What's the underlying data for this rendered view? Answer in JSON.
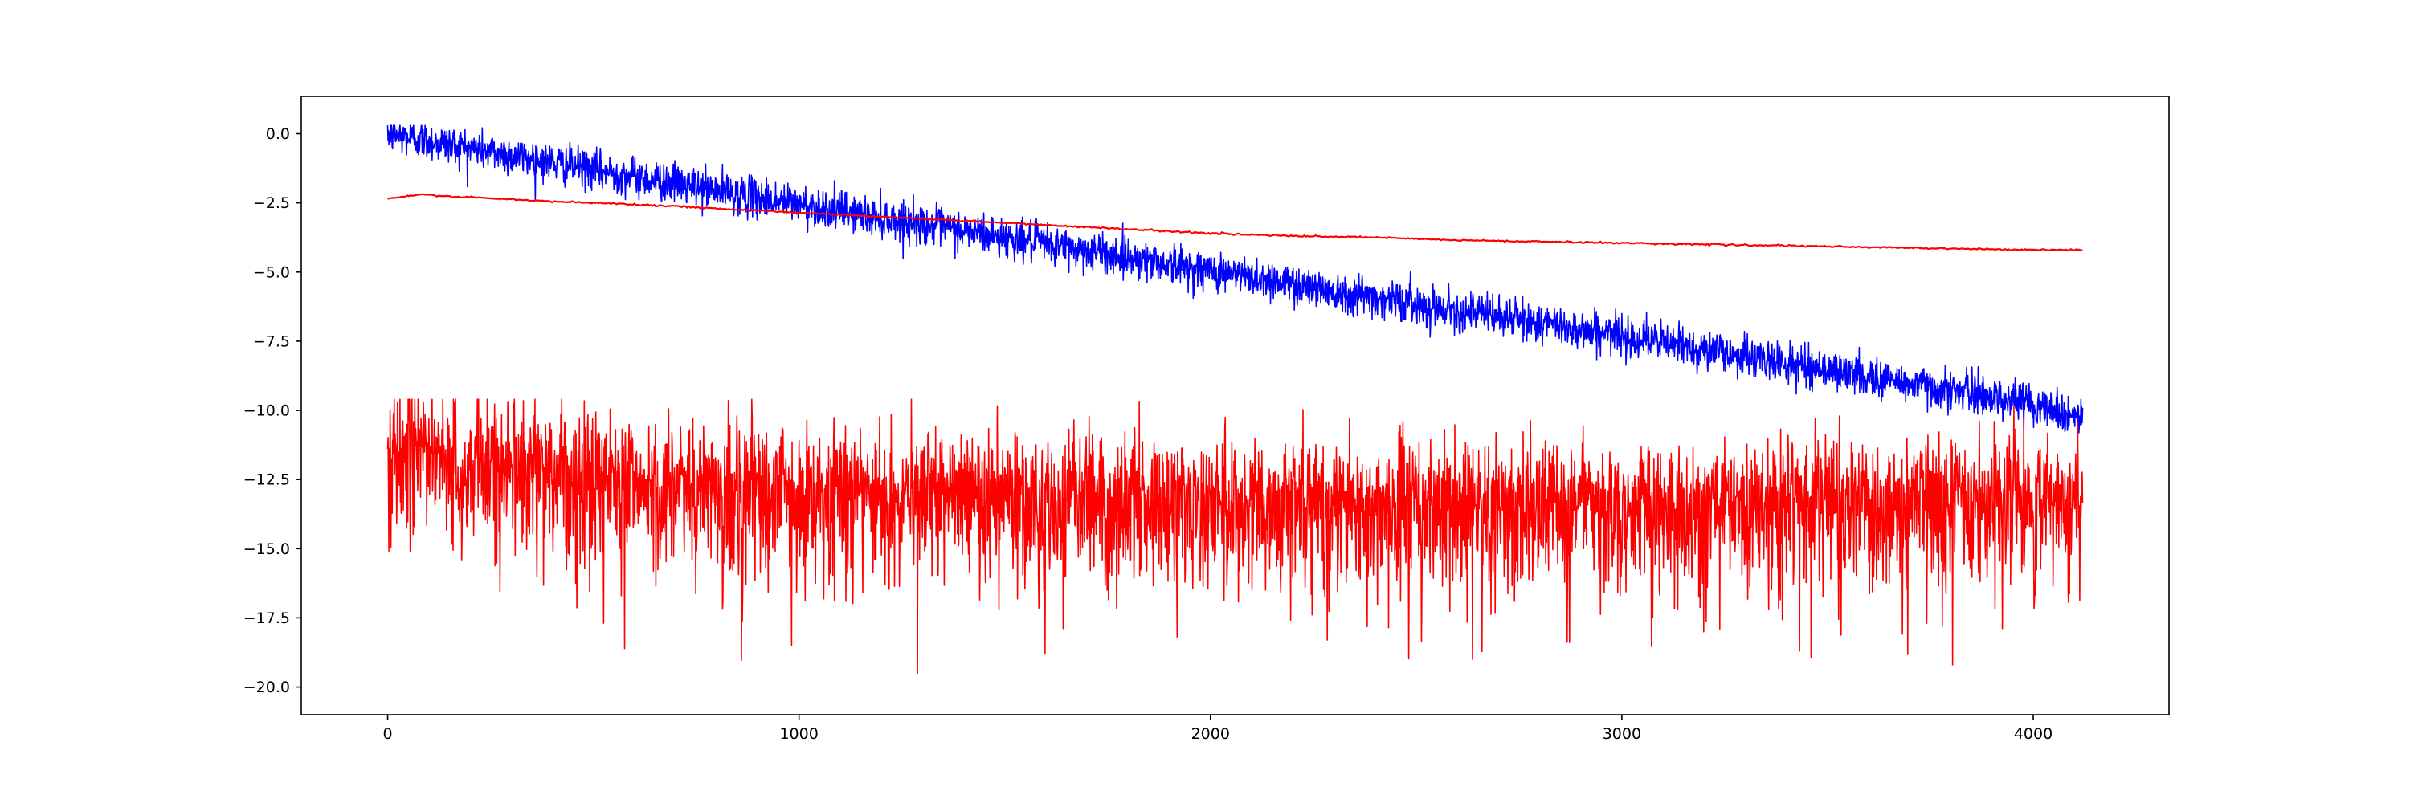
{
  "chart_data": {
    "type": "line",
    "title": "",
    "xlabel": "",
    "ylabel": "",
    "xlim": [
      -210,
      4330
    ],
    "ylim": [
      -21.0,
      1.35
    ],
    "grid": false,
    "legend": "none",
    "x_ticks": [
      {
        "value": 0,
        "label": "0"
      },
      {
        "value": 1000,
        "label": "1000"
      },
      {
        "value": 2000,
        "label": "2000"
      },
      {
        "value": 3000,
        "label": "3000"
      },
      {
        "value": 4000,
        "label": "4000"
      }
    ],
    "y_ticks": [
      {
        "value": 0.0,
        "label": "0.0"
      },
      {
        "value": -2.5,
        "label": "−2.5"
      },
      {
        "value": -5.0,
        "label": "−5.0"
      },
      {
        "value": -7.5,
        "label": "−7.5"
      },
      {
        "value": -10.0,
        "label": "−10.0"
      },
      {
        "value": -12.5,
        "label": "−12.5"
      },
      {
        "value": -15.0,
        "label": "−15.0"
      },
      {
        "value": -17.5,
        "label": "−17.5"
      },
      {
        "value": -20.0,
        "label": "−20.0"
      }
    ],
    "series": [
      {
        "color": "#0000ff",
        "style": "noisy",
        "x": [
          0,
          500,
          1000,
          1500,
          2000,
          2500,
          3000,
          3500,
          4000,
          4120
        ],
        "trend": [
          0.0,
          -1.3,
          -2.55,
          -3.75,
          -4.95,
          -6.15,
          -7.3,
          -8.55,
          -9.75,
          -10.3
        ],
        "noise_amplitude": 0.35,
        "min": -11.0,
        "max": 0.3
      },
      {
        "color": "#ff0000",
        "style": "smooth",
        "x": [
          0,
          80,
          200,
          400,
          600,
          800,
          1000,
          1200,
          1400,
          1600,
          1800,
          2000,
          2200,
          2400,
          2600,
          2800,
          3000,
          3200,
          3400,
          3600,
          3800,
          4000,
          4120
        ],
        "y": [
          -2.35,
          -2.2,
          -2.3,
          -2.45,
          -2.55,
          -2.7,
          -2.85,
          -3.0,
          -3.15,
          -3.3,
          -3.45,
          -3.6,
          -3.7,
          -3.75,
          -3.85,
          -3.9,
          -3.95,
          -4.0,
          -4.05,
          -4.1,
          -4.15,
          -4.2,
          -4.2
        ]
      },
      {
        "color": "#ff0000",
        "style": "noisy",
        "x": [
          0,
          50,
          150,
          500,
          1000,
          1500,
          2000,
          2500,
          3000,
          3500,
          4000,
          4120
        ],
        "trend": [
          -11.8,
          -11.2,
          -11.9,
          -12.4,
          -12.9,
          -13.2,
          -13.3,
          -13.4,
          -13.4,
          -13.3,
          -13.2,
          -13.2
        ],
        "noise_amplitude": 1.1,
        "min": -20.1,
        "max": -9.6
      }
    ]
  }
}
